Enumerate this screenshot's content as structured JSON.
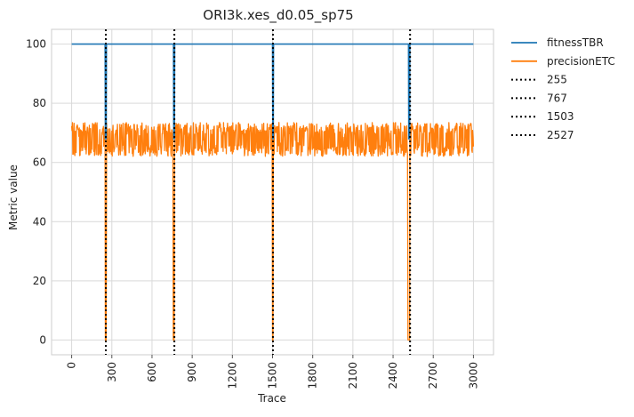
{
  "chart_data": {
    "type": "line",
    "title": "ORI3k.xes_d0.05_sp75",
    "xlabel": "Trace",
    "ylabel": "Metric value",
    "xlim": [
      -150,
      3150
    ],
    "ylim": [
      -5,
      105
    ],
    "xticks": [
      0,
      300,
      600,
      900,
      1200,
      1500,
      1800,
      2100,
      2400,
      2700,
      3000
    ],
    "yticks": [
      0,
      20,
      40,
      60,
      80,
      100
    ],
    "grid": true,
    "legend_position": "outside-top-right",
    "series": [
      {
        "name": "fitnessTBR",
        "color": "#1f77b4",
        "style": "solid",
        "points": [
          [
            0,
            100
          ],
          [
            250,
            100
          ],
          [
            252,
            68
          ],
          [
            258,
            68
          ],
          [
            260,
            100
          ],
          [
            760,
            100
          ],
          [
            762,
            68
          ],
          [
            767,
            68
          ],
          [
            769,
            100
          ],
          [
            1500,
            100
          ],
          [
            1502,
            68
          ],
          [
            1505,
            68
          ],
          [
            1507,
            100
          ],
          [
            2515,
            100
          ],
          [
            2517,
            68
          ],
          [
            2523,
            68
          ],
          [
            2525,
            100
          ],
          [
            3000,
            100
          ]
        ]
      },
      {
        "name": "precisionETC",
        "color": "#ff7f0e",
        "style": "noisy band",
        "band": {
          "min": 62,
          "max": 73.5
        },
        "drops": [
          {
            "x_start": 250,
            "x_end": 258,
            "value": 0
          },
          {
            "x_start": 758,
            "x_end": 767,
            "value": 0
          },
          {
            "x_start": 1500,
            "x_end": 1505,
            "value": 0
          },
          {
            "x_start": 2510,
            "x_end": 2523,
            "value": 0
          }
        ],
        "x_range": [
          0,
          3000
        ]
      }
    ],
    "vlines": [
      {
        "label": "255",
        "x": 255,
        "color": "#000000",
        "style": "dotted"
      },
      {
        "label": "767",
        "x": 767,
        "color": "#000000",
        "style": "dotted"
      },
      {
        "label": "1503",
        "x": 1503,
        "color": "#000000",
        "style": "dotted"
      },
      {
        "label": "2527",
        "x": 2527,
        "color": "#000000",
        "style": "dotted"
      }
    ]
  }
}
